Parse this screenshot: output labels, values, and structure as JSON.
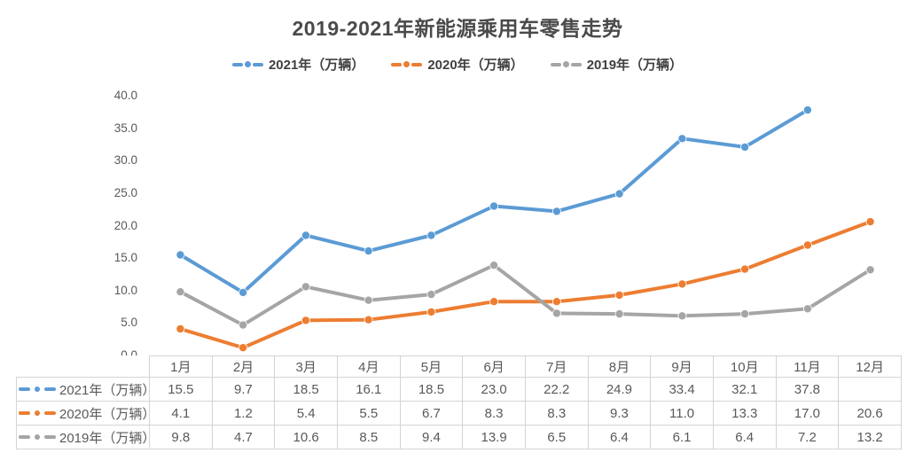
{
  "chart_data": {
    "type": "line",
    "title": "2019-2021年新能源乘用车零售走势",
    "categories": [
      "1月",
      "2月",
      "3月",
      "4月",
      "5月",
      "6月",
      "7月",
      "8月",
      "9月",
      "10月",
      "11月",
      "12月"
    ],
    "series": [
      {
        "name": "2021年（万辆）",
        "color": "#5B9BD5",
        "values": [
          15.5,
          9.7,
          18.5,
          16.1,
          18.5,
          23.0,
          22.2,
          24.9,
          33.4,
          32.1,
          37.8,
          null
        ]
      },
      {
        "name": "2020年（万辆）",
        "color": "#ED7D31",
        "values": [
          4.1,
          1.2,
          5.4,
          5.5,
          6.7,
          8.3,
          8.3,
          9.3,
          11.0,
          13.3,
          17.0,
          20.6
        ]
      },
      {
        "name": "2019年（万辆）",
        "color": "#A5A5A5",
        "values": [
          9.8,
          4.7,
          10.6,
          8.5,
          9.4,
          13.9,
          6.5,
          6.4,
          6.1,
          6.4,
          7.2,
          13.2
        ]
      }
    ],
    "ylim": [
      0,
      40
    ],
    "ytick_step": 5,
    "ytick_labels": [
      "0.0",
      "5.0",
      "10.0",
      "15.0",
      "20.0",
      "25.0",
      "30.0",
      "35.0",
      "40.0"
    ],
    "value_decimals": 1,
    "grid": false,
    "legend_position": "top",
    "data_table": true,
    "colors": {
      "title_text": "#4a4a4a",
      "legend_text": "#404040",
      "axis_text": "#595959",
      "table_text": "#595959",
      "table_border": "#d4d4d4",
      "background": "#ffffff"
    }
  }
}
